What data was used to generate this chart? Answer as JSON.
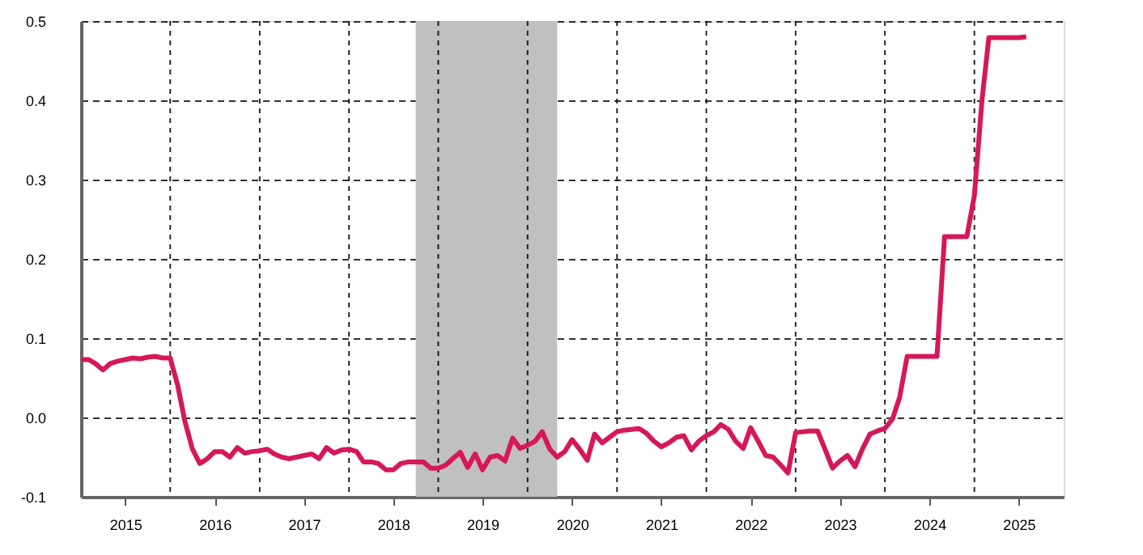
{
  "chart_data": {
    "type": "line",
    "x": [
      "2015-01",
      "2015-02",
      "2015-03",
      "2015-04",
      "2015-05",
      "2015-06",
      "2015-07",
      "2015-08",
      "2015-09",
      "2015-10",
      "2015-11",
      "2015-12",
      "2016-01",
      "2016-02",
      "2016-03",
      "2016-04",
      "2016-05",
      "2016-06",
      "2016-07",
      "2016-08",
      "2016-09",
      "2016-10",
      "2016-11",
      "2016-12",
      "2017-01",
      "2017-02",
      "2017-03",
      "2017-04",
      "2017-05",
      "2017-06",
      "2017-07",
      "2017-08",
      "2017-09",
      "2017-10",
      "2017-11",
      "2017-12",
      "2018-01",
      "2018-02",
      "2018-03",
      "2018-04",
      "2018-05",
      "2018-06",
      "2018-07",
      "2018-08",
      "2018-09",
      "2018-10",
      "2018-11",
      "2018-12",
      "2019-01",
      "2019-02",
      "2019-03",
      "2019-04",
      "2019-05",
      "2019-06",
      "2019-07",
      "2019-08",
      "2019-09",
      "2019-10",
      "2019-11",
      "2019-12",
      "2020-01",
      "2020-02",
      "2020-03",
      "2020-04",
      "2020-05",
      "2020-06",
      "2020-07",
      "2020-08",
      "2020-09",
      "2020-10",
      "2020-11",
      "2020-12",
      "2021-01",
      "2021-02",
      "2021-03",
      "2021-04",
      "2021-05",
      "2021-06",
      "2021-07",
      "2021-08",
      "2021-09",
      "2021-10",
      "2021-11",
      "2021-12",
      "2022-01",
      "2022-02",
      "2022-03",
      "2022-04",
      "2022-05",
      "2022-06",
      "2022-07",
      "2022-08",
      "2022-09",
      "2022-10",
      "2022-11",
      "2022-12",
      "2023-01",
      "2023-02",
      "2023-03",
      "2023-04",
      "2023-05",
      "2023-06",
      "2023-07",
      "2023-08",
      "2023-09",
      "2023-10",
      "2023-11",
      "2023-12",
      "2024-01",
      "2024-02",
      "2024-03",
      "2024-04",
      "2024-05",
      "2024-06",
      "2024-07",
      "2024-08",
      "2024-09",
      "2024-10",
      "2024-11",
      "2024-12",
      "2025-01",
      "2025-02",
      "2025-03",
      "2025-04",
      "2025-05",
      "2025-06",
      "2025-07",
      "2025-08"
    ],
    "series": [
      {
        "color": "#d6185a",
        "values": [
          0.073,
          0.073,
          0.068,
          0.06,
          0.068,
          0.071,
          0.073,
          0.075,
          0.074,
          0.076,
          0.077,
          0.075,
          0.075,
          0.04,
          -0.005,
          -0.04,
          -0.058,
          -0.052,
          -0.043,
          -0.043,
          -0.05,
          -0.038,
          -0.045,
          -0.043,
          -0.042,
          -0.04,
          -0.046,
          -0.05,
          -0.052,
          -0.05,
          -0.048,
          -0.046,
          -0.052,
          -0.038,
          -0.045,
          -0.041,
          -0.04,
          -0.043,
          -0.056,
          -0.056,
          -0.058,
          -0.066,
          -0.066,
          -0.058,
          -0.056,
          -0.056,
          -0.056,
          -0.064,
          -0.064,
          -0.06,
          -0.052,
          -0.044,
          -0.063,
          -0.046,
          -0.066,
          -0.05,
          -0.048,
          -0.055,
          -0.026,
          -0.039,
          -0.035,
          -0.03,
          -0.018,
          -0.04,
          -0.05,
          -0.043,
          -0.028,
          -0.04,
          -0.054,
          -0.021,
          -0.032,
          -0.025,
          -0.018,
          -0.016,
          -0.015,
          -0.014,
          -0.02,
          -0.03,
          -0.037,
          -0.032,
          -0.025,
          -0.023,
          -0.041,
          -0.03,
          -0.023,
          -0.018,
          -0.009,
          -0.015,
          -0.03,
          -0.039,
          -0.013,
          -0.03,
          -0.048,
          -0.05,
          -0.06,
          -0.07,
          -0.019,
          -0.018,
          -0.017,
          -0.017,
          -0.04,
          -0.064,
          -0.055,
          -0.048,
          -0.062,
          -0.04,
          -0.021,
          -0.017,
          -0.014,
          -0.002,
          0.025,
          0.077,
          0.077,
          0.077,
          0.077,
          0.077,
          0.228,
          0.228,
          0.228,
          0.228,
          0.28,
          0.4,
          0.479,
          0.479,
          0.479,
          0.479,
          0.479,
          0.48
        ]
      }
    ],
    "xlim": [
      "2015-01-01",
      "2026-01-01"
    ],
    "xticks": [
      {
        "value": "2015-07-01",
        "label": "2015"
      },
      {
        "value": "2016-01-01",
        "label": null
      },
      {
        "value": "2016-07-01",
        "label": "2016"
      },
      {
        "value": "2017-01-01",
        "label": null
      },
      {
        "value": "2017-07-01",
        "label": "2017"
      },
      {
        "value": "2018-01-01",
        "label": null
      },
      {
        "value": "2018-07-01",
        "label": "2018"
      },
      {
        "value": "2019-01-01",
        "label": null
      },
      {
        "value": "2019-07-01",
        "label": "2019"
      },
      {
        "value": "2020-01-01",
        "label": null
      },
      {
        "value": "2020-07-01",
        "label": "2020"
      },
      {
        "value": "2021-01-01",
        "label": null
      },
      {
        "value": "2021-07-01",
        "label": "2021"
      },
      {
        "value": "2022-01-01",
        "label": null
      },
      {
        "value": "2022-07-01",
        "label": "2022"
      },
      {
        "value": "2023-01-01",
        "label": null
      },
      {
        "value": "2023-07-01",
        "label": "2023"
      },
      {
        "value": "2024-01-01",
        "label": null
      },
      {
        "value": "2024-07-01",
        "label": "2024"
      },
      {
        "value": "2025-01-01",
        "label": null
      },
      {
        "value": "2025-07-01",
        "label": "2025"
      }
    ],
    "ylim": [
      -0.1,
      0.5
    ],
    "yticks": [
      -0.1,
      {
        "value": 0,
        "label": "0.0"
      },
      0.1,
      0.2,
      0.3,
      0.4,
      0.5
    ],
    "grid": true,
    "bands": [
      {
        "axis": "x",
        "from": "2018-10",
        "to": "2020-05",
        "color": "#c0c0c0"
      }
    ],
    "line_style": "solid",
    "marker": "none"
  }
}
